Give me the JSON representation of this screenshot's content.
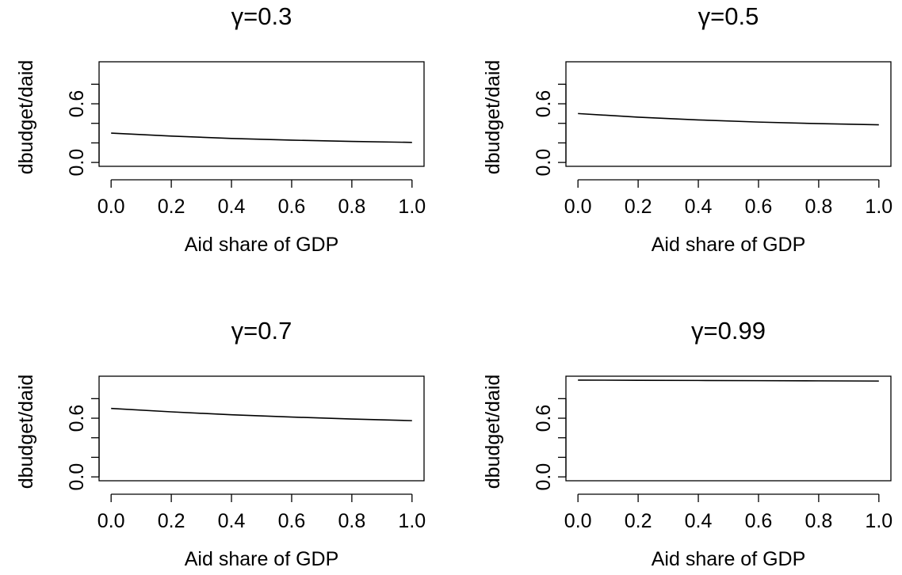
{
  "chart_data": [
    {
      "type": "line",
      "title": "γ=0.3",
      "xlabel": "Aid share of GDP",
      "ylabel": "dbudget/daid",
      "xlim": [
        0.0,
        1.0
      ],
      "ylim": [
        0.0,
        0.99
      ],
      "xticks": [
        "0.0",
        "0.2",
        "0.4",
        "0.6",
        "0.8",
        "1.0"
      ],
      "yticks_labeled": [
        "0.0",
        "0.6"
      ],
      "x": [
        0.0,
        0.2,
        0.4,
        0.6,
        0.8,
        1.0
      ],
      "values": [
        0.3,
        0.27,
        0.245,
        0.228,
        0.215,
        0.205
      ],
      "grid": false
    },
    {
      "type": "line",
      "title": "γ=0.5",
      "xlabel": "Aid share of GDP",
      "ylabel": "dbudget/daid",
      "xlim": [
        0.0,
        1.0
      ],
      "ylim": [
        0.0,
        0.99
      ],
      "xticks": [
        "0.0",
        "0.2",
        "0.4",
        "0.6",
        "0.8",
        "1.0"
      ],
      "yticks_labeled": [
        "0.0",
        "0.6"
      ],
      "x": [
        0.0,
        0.2,
        0.4,
        0.6,
        0.8,
        1.0
      ],
      "values": [
        0.5,
        0.463,
        0.435,
        0.413,
        0.397,
        0.385
      ],
      "grid": false
    },
    {
      "type": "line",
      "title": "γ=0.7",
      "xlabel": "Aid share of GDP",
      "ylabel": "dbudget/daid",
      "xlim": [
        0.0,
        1.0
      ],
      "ylim": [
        0.0,
        0.99
      ],
      "xticks": [
        "0.0",
        "0.2",
        "0.4",
        "0.6",
        "0.8",
        "1.0"
      ],
      "yticks_labeled": [
        "0.0",
        "0.6"
      ],
      "x": [
        0.0,
        0.2,
        0.4,
        0.6,
        0.8,
        1.0
      ],
      "values": [
        0.7,
        0.665,
        0.635,
        0.612,
        0.592,
        0.575
      ],
      "grid": false
    },
    {
      "type": "line",
      "title": "γ=0.99",
      "xlabel": "Aid share of GDP",
      "ylabel": "dbudget/daid",
      "xlim": [
        0.0,
        1.0
      ],
      "ylim": [
        0.0,
        0.99
      ],
      "xticks": [
        "0.0",
        "0.2",
        "0.4",
        "0.6",
        "0.8",
        "1.0"
      ],
      "yticks_labeled": [
        "0.0",
        "0.6"
      ],
      "x": [
        0.0,
        0.2,
        0.4,
        0.6,
        0.8,
        1.0
      ],
      "values": [
        0.99,
        0.988,
        0.986,
        0.984,
        0.982,
        0.98
      ],
      "grid": false
    }
  ]
}
